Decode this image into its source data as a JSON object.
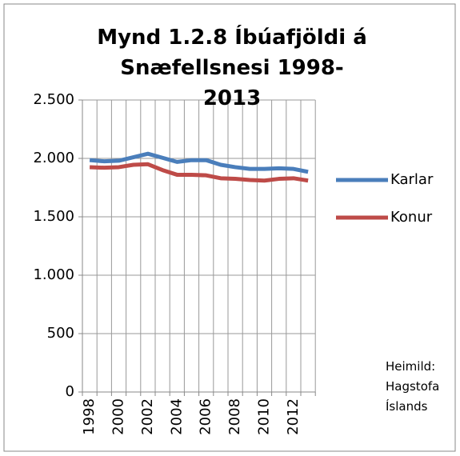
{
  "chart_data": {
    "type": "line",
    "title": "Mynd 1.2.8 Íbúafjöldi á Snæfellsnesi 1998-2013",
    "categories": [
      "1998",
      null,
      "2000",
      null,
      "2002",
      null,
      "2004",
      null,
      "2006",
      null,
      "2008",
      null,
      "2010",
      null,
      "2012",
      null
    ],
    "series": [
      {
        "name": "Karlar",
        "color": "#4a7ebb",
        "values": [
          1985,
          1975,
          1980,
          2010,
          2040,
          2005,
          1970,
          1985,
          1985,
          1945,
          1925,
          1910,
          1910,
          1915,
          1910,
          1885
        ]
      },
      {
        "name": "Konur",
        "color": "#be4b48",
        "values": [
          1925,
          1920,
          1925,
          1945,
          1950,
          1900,
          1860,
          1860,
          1855,
          1830,
          1825,
          1815,
          1810,
          1825,
          1830,
          1810
        ]
      }
    ],
    "ylim": [
      0,
      2500
    ],
    "yticks": [
      0,
      500,
      {
        "value": 1000,
        "label": "1.000"
      },
      {
        "value": 1500,
        "label": "1.500"
      },
      {
        "value": 2000,
        "label": "2.000"
      },
      {
        "value": 2500,
        "label": "2.500"
      }
    ],
    "grid": true,
    "legend": "right",
    "source_note": "Heimild: Hagstofa Íslands"
  }
}
